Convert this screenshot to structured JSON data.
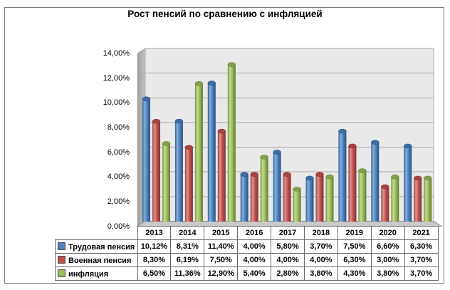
{
  "chart_data": {
    "type": "bar",
    "style": "3d-cylinder",
    "title": "Рост пенсий по сравнению с инфляцией",
    "categories": [
      "2013",
      "2014",
      "2015",
      "2016",
      "2017",
      "2018",
      "2019",
      "2020",
      "2021"
    ],
    "series": [
      {
        "name": "Трудовая пенсия",
        "color": "#4F81BD",
        "gradient": [
          "#31608F",
          "#85AEDE",
          "#4E80BC",
          "#29507C"
        ],
        "cap_color": "#3E6CA5",
        "values": [
          10.12,
          8.31,
          11.4,
          4.0,
          5.8,
          3.7,
          7.5,
          6.6,
          6.3
        ]
      },
      {
        "name": "Военная пенсия",
        "color": "#C0504D",
        "gradient": [
          "#96413E",
          "#DE9391",
          "#BF504C",
          "#7E3331"
        ],
        "cap_color": "#A8433F",
        "values": [
          8.3,
          6.19,
          7.5,
          4.0,
          4.0,
          4.0,
          6.3,
          3.0,
          3.7
        ]
      },
      {
        "name": "инфляция",
        "color": "#9BBB59",
        "gradient": [
          "#75953F",
          "#C6DA90",
          "#9ABB59",
          "#5F7A33"
        ],
        "cap_color": "#83A149",
        "values": [
          6.5,
          11.36,
          12.9,
          5.4,
          2.8,
          3.8,
          4.3,
          3.8,
          3.7
        ]
      }
    ],
    "y_ticks": [
      "14,00%",
      "12,00%",
      "10,00%",
      "8,00%",
      "6,00%",
      "4,00%",
      "2,00%",
      "0,00%"
    ],
    "ylim": [
      0,
      14
    ],
    "grid": true,
    "legend_position": "data-table-left",
    "value_format": "percent-comma-2dp"
  },
  "plot_colors": {
    "back_wall": "#E9E9E9",
    "side_wall_dark": "#9C9C9C",
    "side_wall_light": "#C6C6C6",
    "floor": "#C9C9C9",
    "gridline": "#A6A6A6",
    "wall_edge": "#ABABAB",
    "floor_edge": "#8E8E8E",
    "frame_border": "#7A7A7A",
    "table_border": "#6A6A6A",
    "text": "#000000"
  }
}
